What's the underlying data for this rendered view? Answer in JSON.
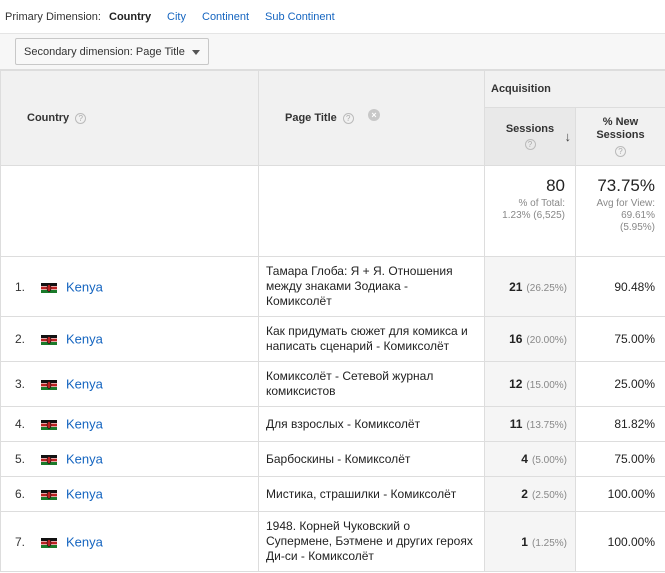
{
  "dimensions": {
    "label": "Primary Dimension:",
    "options": [
      "Country",
      "City",
      "Continent",
      "Sub Continent"
    ],
    "active": "Country"
  },
  "secondary": {
    "label": "Secondary dimension: Page Title"
  },
  "table": {
    "group_header": "Acquisition",
    "columns": {
      "country": "Country",
      "page_title": "Page Title",
      "sessions": "Sessions",
      "new_sessions": "% New Sessions"
    },
    "help_glyph": "?",
    "remove_glyph": "×",
    "sort_glyph": "↓",
    "totals": {
      "sessions": "80",
      "sessions_sub1": "% of Total:",
      "sessions_sub2": "1.23% (6,525)",
      "new_sessions": "73.75%",
      "new_sub1": "Avg for View:",
      "new_sub2": "69.61%",
      "new_sub3": "(5.95%)"
    },
    "rows": [
      {
        "rank": "1.",
        "country": "Kenya",
        "page_title": "Тамара Глоба: Я + Я. Отношения между знаками Зодиака - Комиксолёт",
        "sessions": "21",
        "sessions_pct": "(26.25%)",
        "new_sessions": "90.48%"
      },
      {
        "rank": "2.",
        "country": "Kenya",
        "page_title": "Как придумать сюжет для комикса и написать сценарий - Комиксолёт",
        "sessions": "16",
        "sessions_pct": "(20.00%)",
        "new_sessions": "75.00%"
      },
      {
        "rank": "3.",
        "country": "Kenya",
        "page_title": "Комиксолёт - Сетевой журнал комиксистов",
        "sessions": "12",
        "sessions_pct": "(15.00%)",
        "new_sessions": "25.00%"
      },
      {
        "rank": "4.",
        "country": "Kenya",
        "page_title": "Для взрослых - Комиксолёт",
        "sessions": "11",
        "sessions_pct": "(13.75%)",
        "new_sessions": "81.82%"
      },
      {
        "rank": "5.",
        "country": "Kenya",
        "page_title": "Барбоскины - Комиксолёт",
        "sessions": "4",
        "sessions_pct": "(5.00%)",
        "new_sessions": "75.00%"
      },
      {
        "rank": "6.",
        "country": "Kenya",
        "page_title": "Мистика, страшилки - Комиксолёт",
        "sessions": "2",
        "sessions_pct": "(2.50%)",
        "new_sessions": "100.00%"
      },
      {
        "rank": "7.",
        "country": "Kenya",
        "page_title": "1948. Корней Чуковский о Супермене, Бэтмене и других героях Ди-си - Комиксолёт",
        "sessions": "1",
        "sessions_pct": "(1.25%)",
        "new_sessions": "100.00%"
      }
    ]
  },
  "colors": {
    "link": "#1565c0",
    "header_bg": "#f1f1f1",
    "border": "#dddddd"
  },
  "icons": {
    "flag": "kenya-flag-icon",
    "help": "help-icon",
    "remove": "remove-icon",
    "sort": "sort-descending-icon"
  }
}
